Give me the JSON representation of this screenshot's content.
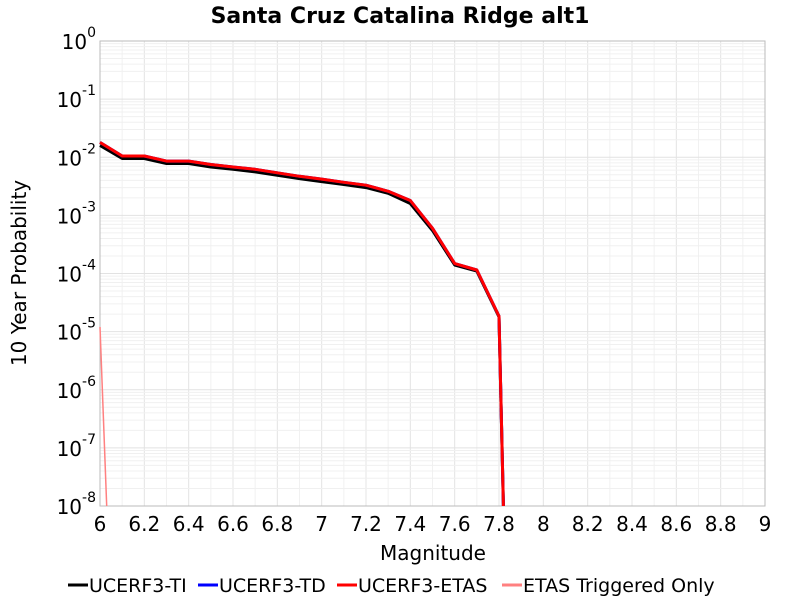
{
  "chart_data": {
    "type": "line",
    "title": "Santa Cruz Catalina Ridge alt1",
    "xlabel": "Magnitude",
    "ylabel": "10 Year Probability",
    "xlim": [
      6,
      9
    ],
    "ylim": [
      1e-08,
      1
    ],
    "yscale": "log",
    "grid": true,
    "legend_position": "bottom",
    "x_ticks": [
      "6",
      "6.2",
      "6.4",
      "6.6",
      "6.8",
      "7",
      "7.2",
      "7.4",
      "7.6",
      "7.8",
      "8",
      "8.2",
      "8.4",
      "8.6",
      "8.8",
      "9"
    ],
    "y_ticks": [
      {
        "base": "10",
        "exp": "0"
      },
      {
        "base": "10",
        "exp": "-1"
      },
      {
        "base": "10",
        "exp": "-2"
      },
      {
        "base": "10",
        "exp": "-3"
      },
      {
        "base": "10",
        "exp": "-4"
      },
      {
        "base": "10",
        "exp": "-5"
      },
      {
        "base": "10",
        "exp": "-6"
      },
      {
        "base": "10",
        "exp": "-7"
      },
      {
        "base": "10",
        "exp": "-8"
      }
    ],
    "series": [
      {
        "name": "UCERF3-TI",
        "color": "#000000",
        "x": [
          6.0,
          6.1,
          6.2,
          6.3,
          6.4,
          6.5,
          6.6,
          6.7,
          6.8,
          6.9,
          7.0,
          7.1,
          7.2,
          7.3,
          7.4,
          7.5,
          7.6,
          7.7,
          7.8,
          7.82
        ],
        "y": [
          0.016,
          0.0095,
          0.0095,
          0.0078,
          0.0078,
          0.0068,
          0.0062,
          0.0056,
          0.0049,
          0.0043,
          0.0038,
          0.0034,
          0.003,
          0.0024,
          0.0016,
          0.00055,
          0.00014,
          0.00011,
          1.8e-05,
          1e-08
        ]
      },
      {
        "name": "UCERF3-TD",
        "color": "#0000ff",
        "x": [
          6.0,
          6.1,
          6.2,
          6.3,
          6.4,
          6.5,
          6.6,
          6.7,
          6.8,
          6.9,
          7.0,
          7.1,
          7.2,
          7.3,
          7.4,
          7.5,
          7.6,
          7.7,
          7.8,
          7.82
        ],
        "y": [
          0.018,
          0.0105,
          0.0105,
          0.0086,
          0.0086,
          0.0075,
          0.0068,
          0.0062,
          0.0054,
          0.0047,
          0.0042,
          0.0037,
          0.0033,
          0.0026,
          0.0018,
          0.0006,
          0.000148,
          0.000115,
          1.85e-05,
          1e-08
        ]
      },
      {
        "name": "UCERF3-ETAS",
        "color": "#ff0000",
        "x": [
          6.0,
          6.1,
          6.2,
          6.3,
          6.4,
          6.5,
          6.6,
          6.7,
          6.8,
          6.9,
          7.0,
          7.1,
          7.2,
          7.3,
          7.4,
          7.5,
          7.6,
          7.7,
          7.8,
          7.82
        ],
        "y": [
          0.018,
          0.0105,
          0.0105,
          0.0086,
          0.0086,
          0.0075,
          0.0068,
          0.0062,
          0.0054,
          0.0047,
          0.0042,
          0.0037,
          0.0033,
          0.0026,
          0.0018,
          0.0006,
          0.000148,
          0.000115,
          1.85e-05,
          1e-08
        ]
      },
      {
        "name": "ETAS Triggered Only",
        "color": "#ff8080",
        "x": [
          6.0,
          6.03
        ],
        "y": [
          1.2e-05,
          1e-08
        ]
      }
    ]
  }
}
